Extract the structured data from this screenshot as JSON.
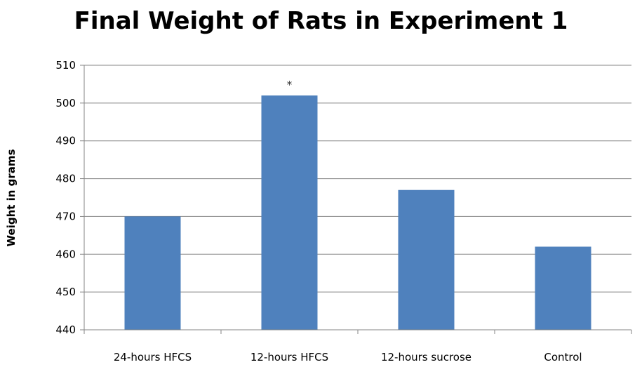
{
  "chart_data": {
    "type": "bar",
    "title": "Final Weight of Rats in Experiment 1",
    "xlabel": "",
    "ylabel": "Weight in grams",
    "categories": [
      "24-hours HFCS",
      "12-hours HFCS",
      "12-hours sucrose",
      "Control"
    ],
    "values": [
      470,
      502,
      477,
      462
    ],
    "ylim": [
      440,
      510
    ],
    "yticks": [
      440,
      450,
      460,
      470,
      480,
      490,
      500,
      510
    ],
    "grid": true,
    "legend": "none",
    "annotations": [
      {
        "category": "12-hours HFCS",
        "text": "*"
      }
    ],
    "colors": {
      "bar": "#4F81BD",
      "grid": "#868686",
      "axis": "#868686"
    }
  }
}
